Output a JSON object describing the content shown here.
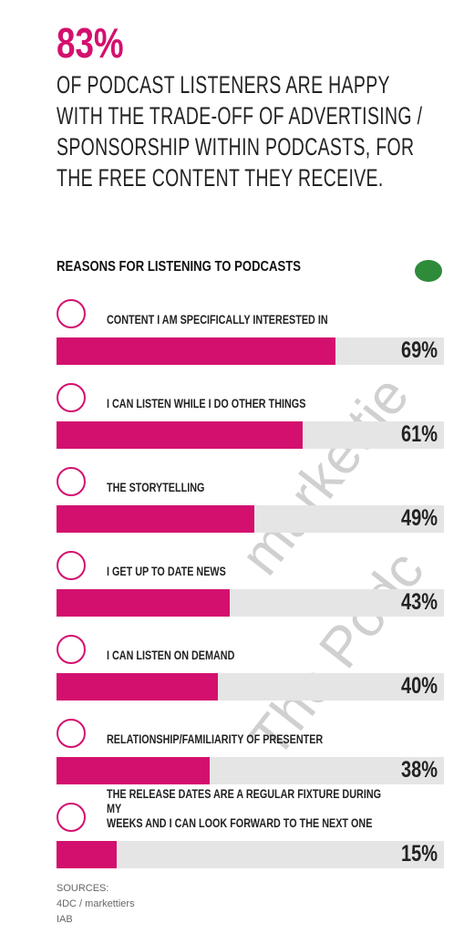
{
  "headline": {
    "stat": "83%",
    "lines": [
      "OF  PODCAST LISTENERS ARE HAPPY",
      "WITH THE TRADE-OFF OF ADVERTISING /",
      "SPONSORSHIP WITHIN PODCASTS, FOR",
      "THE FREE CONTENT THEY RECEIVE."
    ]
  },
  "chart_data": {
    "type": "bar",
    "orientation": "horizontal",
    "title": "REASONS FOR LISTENING TO PODCASTS",
    "categories": [
      "CONTENT I AM SPECIFICALLY INTERESTED IN",
      "I CAN LISTEN WHILE I DO OTHER THINGS",
      "THE STORYTELLING",
      "I GET UP TO DATE NEWS",
      "I CAN LISTEN ON DEMAND",
      "RELATIONSHIP/FAMILIARITY OF PRESENTER",
      "THE RELEASE DATES ARE A REGULAR FIXTURE DURING MY\nWEEKS AND I CAN LOOK FORWARD TO THE NEXT ONE"
    ],
    "values": [
      69,
      61,
      49,
      43,
      40,
      38,
      15
    ],
    "value_labels": [
      "69%",
      "61%",
      "49%",
      "43%",
      "40%",
      "38%",
      "15%"
    ],
    "color": "#d4106e",
    "track_color": "#e5e5e5",
    "xlim": [
      0,
      100
    ]
  },
  "sources": {
    "label": "SOURCES:",
    "lines": [
      "4DC / markettiers",
      "IAB"
    ]
  },
  "watermark": [
    "markettie",
    "The Podc"
  ]
}
